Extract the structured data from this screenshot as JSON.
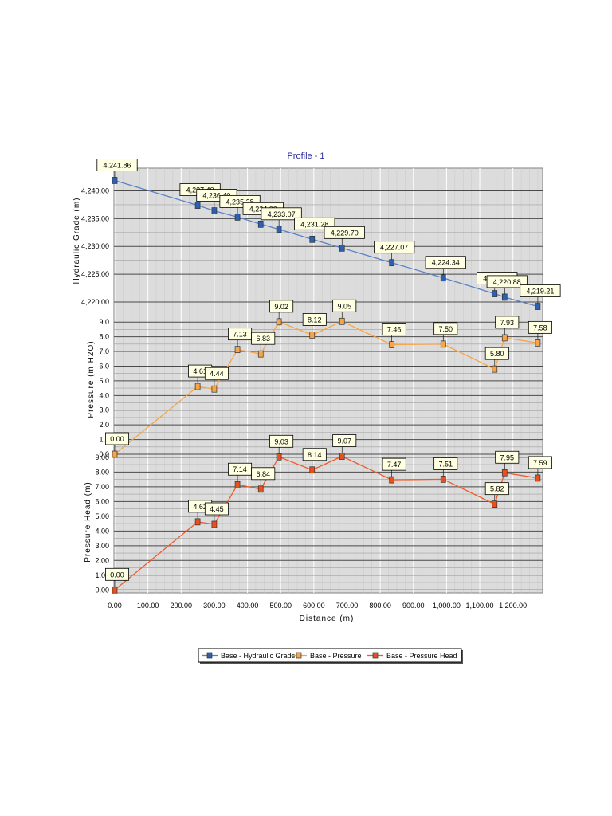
{
  "chart_data": {
    "type": "line",
    "title": "Profile - 1",
    "xlabel": "Distance (m)",
    "xlim": [
      0,
      1280
    ],
    "x_ticks": [
      "0.00",
      "100.00",
      "200.00",
      "300.00",
      "400.00",
      "500.00",
      "600.00",
      "700.00",
      "800.00",
      "900.00",
      "1,000.00",
      "1,100.00",
      "1,200.00"
    ],
    "grid": true,
    "legend_position": "bottom",
    "panels": [
      {
        "ylabel": "Hydraulic Grade (m)",
        "ylim": [
          4218,
          4242.5
        ],
        "y_ticks": [
          "4,220.00",
          "4,225.00",
          "4,230.00",
          "4,235.00",
          "4,240.00"
        ],
        "series": [
          {
            "name": "Base - Hydraulic Grade",
            "color": "#5a82c8",
            "marker_color": "#2f5fb0",
            "x": [
              0,
              250,
              300,
              370,
              440,
              495,
              595,
              685,
              835,
              990,
              1145,
              1175,
              1275
            ],
            "y": [
              4241.86,
              4237.4,
              4236.4,
              4235.28,
              4234.0,
              4233.07,
              4231.28,
              4229.7,
              4227.07,
              4224.34,
              4221.5,
              4220.88,
              4219.21
            ],
            "labels": [
              "4,241.86",
              "4,237.40",
              "4,236.40",
              "4,235.28",
              "4,234.00",
              "4,233.07",
              "4,231.28",
              "4,229.70",
              "4,227.07",
              "4,224.34",
              "4,221.50",
              "4,220.88",
              "4,219.21"
            ]
          }
        ]
      },
      {
        "ylabel": "Pressure (m H2O)",
        "ylim": [
          0,
          9.5
        ],
        "y_ticks": [
          "0.0",
          "1.0",
          "2.0",
          "3.0",
          "4.0",
          "5.0",
          "6.0",
          "7.0",
          "8.0",
          "9.0"
        ],
        "series": [
          {
            "name": "Base - Pressure",
            "color": "#f5a54a",
            "marker_color": "#f5a54a",
            "x": [
              0,
              250,
              300,
              370,
              440,
              495,
              595,
              685,
              835,
              990,
              1145,
              1175,
              1275
            ],
            "y": [
              0.0,
              4.61,
              4.44,
              7.13,
              6.83,
              9.02,
              8.12,
              9.05,
              7.46,
              7.5,
              5.8,
              7.93,
              7.58
            ],
            "labels": [
              "0.00",
              "4.61",
              "4.44",
              "7.13",
              "6.83",
              "9.02",
              "8.12",
              "9.05",
              "7.46",
              "7.50",
              "5.80",
              "7.93",
              "7.58"
            ]
          }
        ]
      },
      {
        "ylabel": "Pressure Head (m)",
        "ylim": [
          -0.2,
          9.1
        ],
        "y_ticks": [
          "0.00",
          "1.00",
          "2.00",
          "3.00",
          "4.00",
          "5.00",
          "6.00",
          "7.00",
          "8.00",
          "9.00"
        ],
        "series": [
          {
            "name": "Base - Pressure Head",
            "color": "#f05a28",
            "marker_color": "#e8501e",
            "x": [
              0,
              250,
              300,
              370,
              440,
              495,
              595,
              685,
              835,
              990,
              1145,
              1175,
              1275
            ],
            "y": [
              0.0,
              4.62,
              4.45,
              7.14,
              6.84,
              9.03,
              8.14,
              9.07,
              7.47,
              7.51,
              5.82,
              7.95,
              7.59
            ],
            "labels": [
              "0.00",
              "4.62",
              "4.45",
              "7.14",
              "6.84",
              "9.03",
              "8.14",
              "9.07",
              "7.47",
              "7.51",
              "5.82",
              "7.95",
              "7.59"
            ]
          }
        ]
      }
    ],
    "legend": [
      "Base - Hydraulic Grade",
      "Base - Pressure",
      "Base - Pressure Head"
    ]
  }
}
